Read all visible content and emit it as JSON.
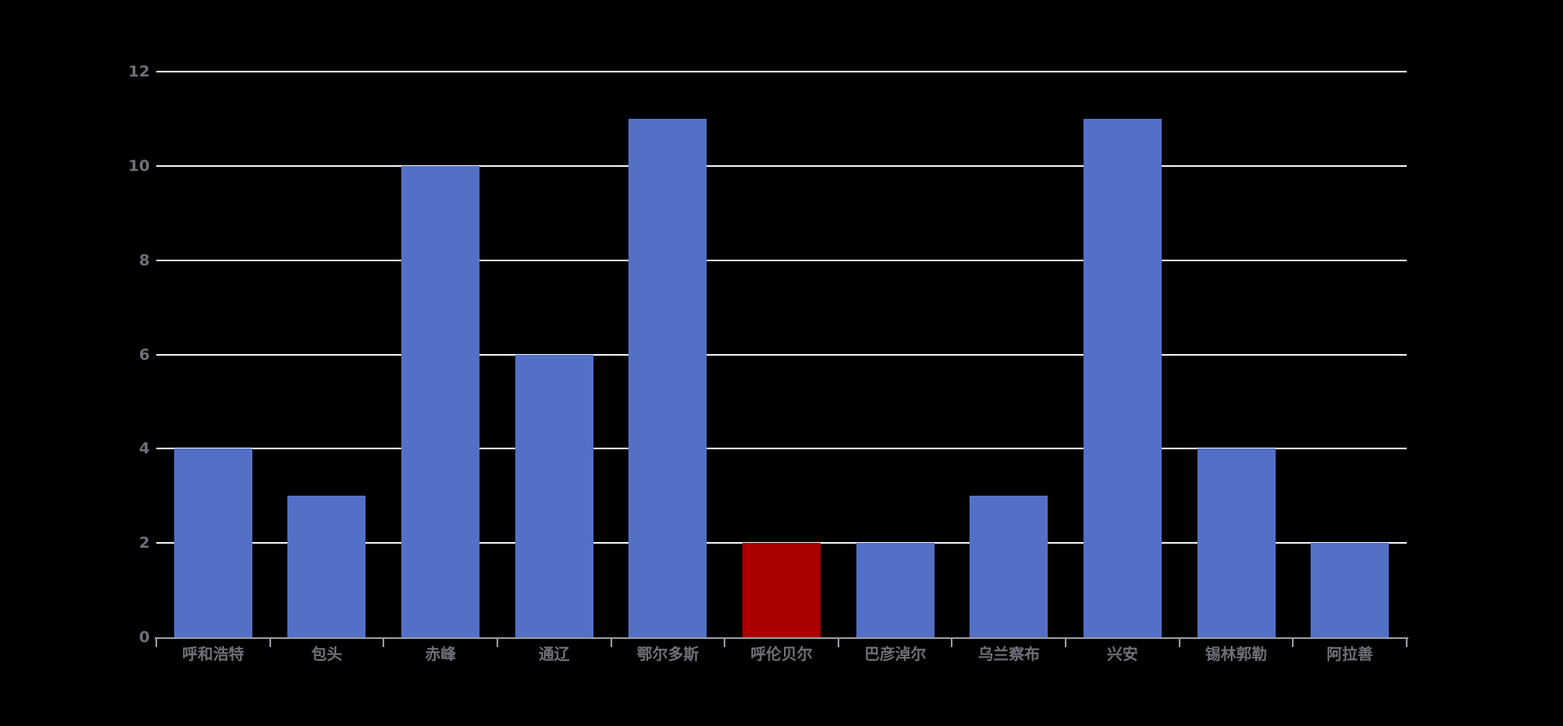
{
  "chart_data": {
    "type": "bar",
    "title": "",
    "xlabel": "",
    "ylabel": "",
    "categories": [
      "呼和浩特",
      "包头",
      "赤峰",
      "通辽",
      "鄂尔多斯",
      "呼伦贝尔",
      "巴彦淖尔",
      "乌兰察布",
      "兴安",
      "锡林郭勒",
      "阿拉善"
    ],
    "values": [
      4,
      3,
      10,
      6,
      11,
      2,
      2,
      3,
      11,
      4,
      2
    ],
    "highlighted_category": "呼伦贝尔",
    "highlighted_index": 5,
    "yticks": [
      0,
      2,
      4,
      6,
      8,
      10,
      12
    ],
    "ylim": [
      0,
      12
    ],
    "grid": true,
    "legend": "none",
    "colors": {
      "background": "#000000",
      "bar": "#5470c6",
      "highlight": "#aa0000",
      "gridline": "#eceff5",
      "axis_line": "#979ba3",
      "tick_label": "#6e7079"
    }
  }
}
